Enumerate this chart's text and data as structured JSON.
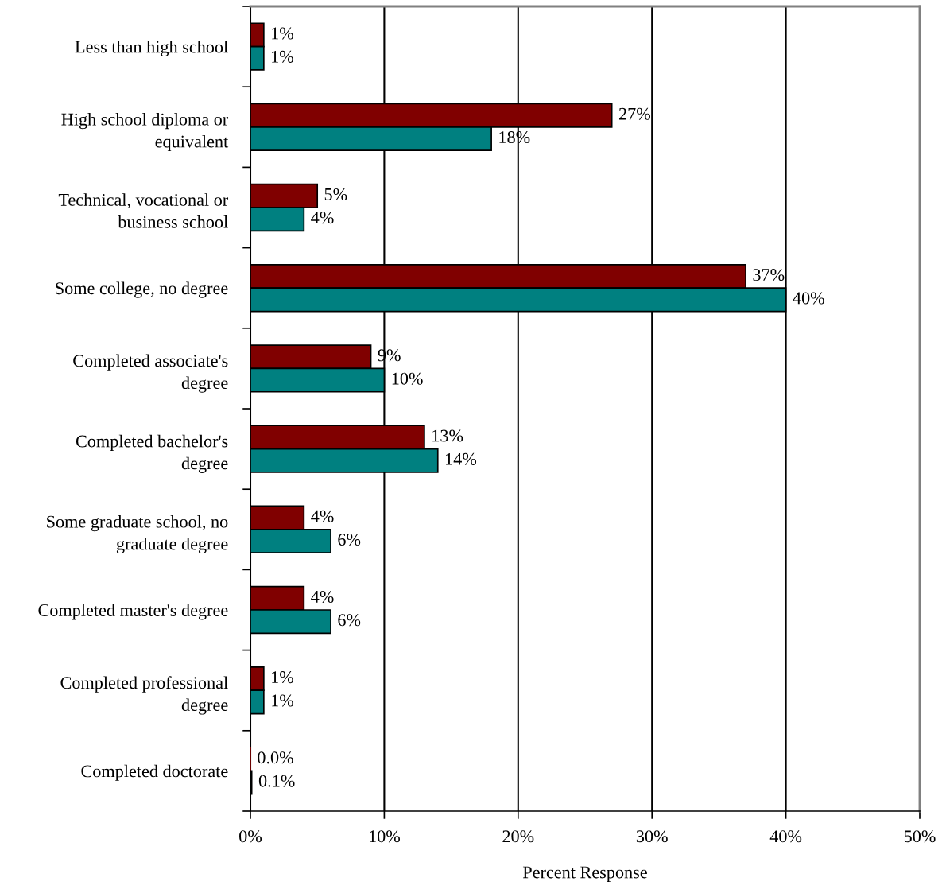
{
  "chart_data": {
    "type": "bar",
    "orientation": "horizontal",
    "xlabel": "Percent Response",
    "categories": [
      "Less than high school",
      "High school diploma or\nequivalent",
      "Technical, vocational or\nbusiness school",
      "Some college, no degree",
      "Completed associate's\ndegree",
      "Completed bachelor's\ndegree",
      "Some graduate school, no\ngraduate degree",
      "Completed master's degree",
      "Completed professional\ndegree",
      "Completed doctorate"
    ],
    "series": [
      {
        "color": "#800000",
        "values": [
          1,
          27,
          5,
          37,
          9,
          13,
          4,
          4,
          1,
          0.0
        ],
        "value_labels": [
          "1%",
          "27%",
          "5%",
          "37%",
          "9%",
          "13%",
          "4%",
          "4%",
          "1%",
          "0.0%"
        ]
      },
      {
        "color": "#008080",
        "values": [
          1,
          18,
          4,
          40,
          10,
          14,
          6,
          6,
          1,
          0.1
        ],
        "value_labels": [
          "1%",
          "18%",
          "4%",
          "40%",
          "10%",
          "14%",
          "6%",
          "6%",
          "1%",
          "0.1%"
        ]
      }
    ],
    "xlim": [
      0,
      50
    ],
    "xticks": [
      {
        "value": 0,
        "label": "0%"
      },
      {
        "value": 10,
        "label": "10%"
      },
      {
        "value": 20,
        "label": "20%"
      },
      {
        "value": 30,
        "label": "30%"
      },
      {
        "value": 40,
        "label": "40%"
      },
      {
        "value": 50,
        "label": "50%"
      }
    ],
    "grid": "x",
    "legend": false
  }
}
